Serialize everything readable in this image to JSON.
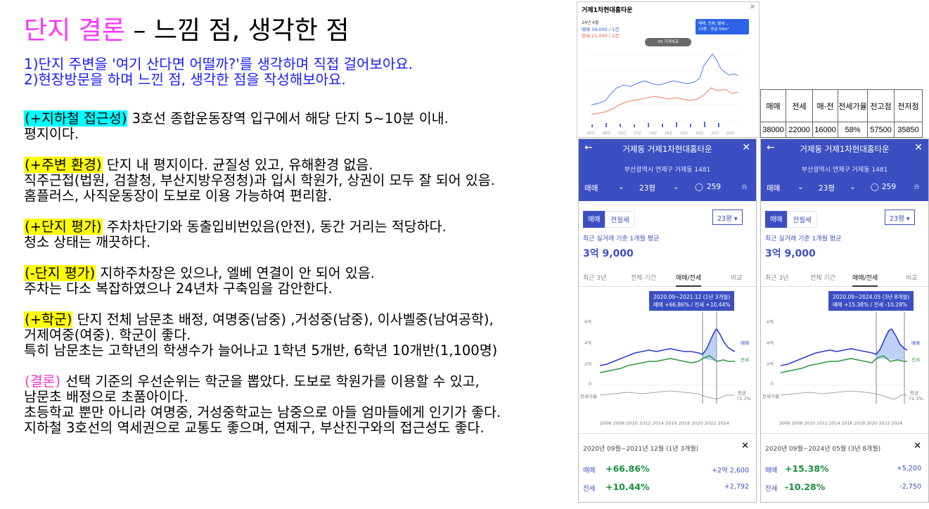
{
  "title": {
    "accent": "단지 결론",
    "rest": " – 느낌 점, 생각한 점"
  },
  "intro": [
    "1)단지 주변을 '여기 산다면 어떨까?'를 생각하며 직접 걸어보아요.",
    "2)현장방문을 하며 느낀 점, 생각한 점을 작성해보아요."
  ],
  "sections": [
    {
      "tag": "(+지하철 접근성)",
      "lines": [
        "3호선 종합운동장역 입구에서 해당 단지 5~10분 이내.",
        "평지이다."
      ]
    },
    {
      "tag": "(+주변 환경)",
      "lines": [
        "단지 내 평지이다. 균질성 있고, 유해환경 없음.",
        "직주근접(법원, 검찰청, 부산지방우정청)과 입시 학원가, 상권이 모두 잘 되어 있음.",
        "홈플러스, 사직운동장이 도보로 이용 가능하여 편리함."
      ]
    },
    {
      "tag": "(+단지 평가)",
      "lines": [
        "주차차단기와 동출입비번있음(안전), 동간 거리는 적당하다.",
        "청소 상태는 깨끗하다."
      ]
    },
    {
      "tag": "(-단지 평가)",
      "lines": [
        "지하주차장은 있으나, 엘베 연결이 안 되어 있음.",
        "주차는 다소 복잡하였으나 24년차 구축임을 감안한다."
      ]
    },
    {
      "tag": "(+학군)",
      "lines": [
        "단지 전체 남문초 배정, 여명중(남중) ,거성중(남중), 이사벨중(남여공학),",
        "거제여중(여중). 학군이 좋다.",
        "특히 남문초는 고학년의 학생수가 늘어나고 1학년 5개반, 6학년 10개반(1,100명)"
      ]
    },
    {
      "tag": "(결론)",
      "lines": [
        "선택 기준의 우선순위는 학군을 뽑았다. 도보로 학원가를 이용할 수 있고,",
        "남문초 배정으로 초품아이다.",
        "초등학교 뿐만 아니라 여명중, 거성중학교는 남중으로 아들 엄마들에게 인기가 좋다.",
        "지하철 3호선의 역세권으로 교통도 좋으며, 연제구, 부산진구와의 접근성도 좋다."
      ]
    }
  ],
  "widget": {
    "title": "거제1차현대홈타운",
    "date": "24년 4월",
    "sale": "매매 39,000 / 1건",
    "jeonse": "전세 21,000 / 2건",
    "filter_line1": "매매, 전세, 월세 ⌄",
    "filter_line2": "23평 · 공급 59m²",
    "vs_button": "VS 가격비교",
    "x_ticks": [
      "06년",
      "08년",
      "10년",
      "12년",
      "14년",
      "16년",
      "18년",
      "20년",
      "22년",
      "24년"
    ],
    "close_icon": "✕"
  },
  "stats": {
    "headers": [
      "매매",
      "전세",
      "매-전",
      "전세가율",
      "전고점",
      "전저점"
    ],
    "values": [
      "38000",
      "22000",
      "16000",
      "58%",
      "57500",
      "35850"
    ]
  },
  "phones": [
    {
      "name": "거제동 거제1차현대홈타운",
      "address": "부산광역시 연제구 거제동 1481",
      "deal": "매매",
      "size": "23평",
      "comments": "259",
      "seg_on": "매매",
      "seg_off": "전월세",
      "select": "23평 ▾",
      "avg_label": "최근 실거래 기준 1개월 평균",
      "price": "3억 9,000",
      "tabs": [
        "최근 3년",
        "전체 기간",
        "매매/전세",
        "비교"
      ],
      "tooltip1": "2020.09~2021.12 (1년 3개월)",
      "tooltip2": "매매 +66.86% / 전세 +10.44%",
      "y_labels": [
        "6억",
        "4억",
        "2억",
        "0"
      ],
      "ratio_label": "전세가율",
      "avg_label2": "평균",
      "avg_value": "71.3%",
      "legend_sale": "매매",
      "legend_jeonse": "전세",
      "years": "2006 2008 2010 2012 2014 2016 2018 2020 2022 2024",
      "range": "2020년 09월~2021년 12월 (1년 3개월)",
      "sale_pct": "+66.86%",
      "sale_amt": "+2억 2,600",
      "jeonse_pct": "+10.44%",
      "jeonse_amt": "+2,792"
    },
    {
      "name": "거제동 거제1차현대홈타운",
      "address": "부산광역시 연제구 거제동 1481",
      "deal": "매매",
      "size": "23평",
      "comments": "259",
      "seg_on": "매매",
      "seg_off": "전월세",
      "select": "23평 ▾",
      "avg_label": "최근 실거래 기준 1개월 평균",
      "price": "3억 9,000",
      "tabs": [
        "최근 3년",
        "전체 기간",
        "매매/전세",
        "비교"
      ],
      "tooltip1": "2020.09~2024.05 (3년 8개월)",
      "tooltip2": "매매 +15.38% / 전세 -10.28%",
      "y_labels": [
        "6억",
        "4억",
        "2억",
        "0"
      ],
      "ratio_label": "전세가율",
      "avg_label2": "평균",
      "avg_value": "71.3%",
      "legend_sale": "매매",
      "legend_jeonse": "전세",
      "years": "2006 2008 2010 2012 2014 2016 2018 2020 2022 2024",
      "range": "2020년 09월~2024년 05월 (3년 8개월)",
      "sale_pct": "+15.38%",
      "sale_amt": "+5,200",
      "jeonse_pct": "-10.28%",
      "jeonse_amt": "-2,750"
    }
  ],
  "icons": {
    "back": "back-arrow-icon",
    "close": "close-icon",
    "comment": "comment-icon",
    "bell": "bell-icon",
    "chevron": "chevron-down-icon"
  },
  "colors": {
    "accent_pink": "#ff33ff",
    "intro_blue": "#1a1aff",
    "cyan": "#00ffff",
    "yellow": "#ffff00",
    "header_blue": "#3c4fc2",
    "sale_line": "#2f3fd4",
    "jeonse_line": "#2e9a3f"
  }
}
